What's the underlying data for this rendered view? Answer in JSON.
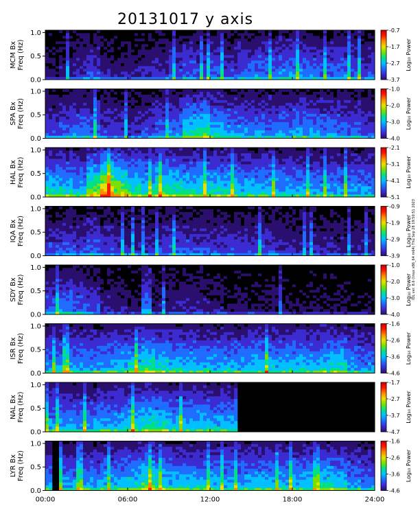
{
  "title": "20131017 y axis",
  "side_note": "IDL ver. 8.6 (linux x86_64 m64) Thu Sep 28 19:50:51 2023",
  "colorbar_label": "Log₁₀ Power",
  "colors": {
    "background_plot": "#000000",
    "colormap": [
      "#000000",
      "#2a0f6e",
      "#3b2bd0",
      "#1f6cff",
      "#00c0ff",
      "#00e08a",
      "#7be000",
      "#e8e000",
      "#ff8a00",
      "#ff1800",
      "#d00000"
    ]
  },
  "chart_data": [
    {
      "type": "heatmap",
      "station": "MCM",
      "ylabel_line1": "MCM Bx",
      "ylabel_line2": "Freq (Hz)",
      "x_range_hours": [
        0,
        24
      ],
      "ylim": [
        0,
        1.05
      ],
      "y_ticks": [
        "0.0",
        "0.5",
        "1.0"
      ],
      "cbar_range": [
        -3.7,
        -0.7
      ],
      "cbar_ticks": [
        "-0.7",
        "-1.7",
        "-2.7",
        "-3.7"
      ],
      "intensity_profile": [
        0.15,
        0.18,
        0.25,
        0.3,
        0.2,
        0.18,
        0.2,
        0.22,
        0.25,
        0.3,
        0.35,
        0.3,
        0.35,
        0.3,
        0.35,
        0.4,
        0.38,
        0.42,
        0.4,
        0.38,
        0.35,
        0.38,
        0.36,
        0.3
      ],
      "data_gap_hours": []
    },
    {
      "type": "heatmap",
      "station": "SPA",
      "ylabel_line1": "SPA Bx",
      "ylabel_line2": "Freq (Hz)",
      "x_range_hours": [
        0,
        24
      ],
      "ylim": [
        0,
        1.05
      ],
      "y_ticks": [
        "0.0",
        "0.5",
        "1.0"
      ],
      "cbar_range": [
        -4.0,
        -1.0
      ],
      "cbar_ticks": [
        "-1.0",
        "-2.0",
        "-3.0",
        "-4.0"
      ],
      "intensity_profile": [
        0.3,
        0.35,
        0.4,
        0.38,
        0.3,
        0.28,
        0.25,
        0.3,
        0.35,
        0.4,
        0.55,
        0.6,
        0.5,
        0.45,
        0.42,
        0.4,
        0.4,
        0.42,
        0.45,
        0.42,
        0.4,
        0.38,
        0.35,
        0.3
      ],
      "data_gap_hours": []
    },
    {
      "type": "heatmap",
      "station": "HAL",
      "ylabel_line1": "HAL Bx",
      "ylabel_line2": "Freq (Hz)",
      "x_range_hours": [
        0,
        24
      ],
      "ylim": [
        0,
        1.05
      ],
      "y_ticks": [
        "0.0",
        "0.5",
        "1.0"
      ],
      "cbar_range": [
        -5.1,
        -2.1
      ],
      "cbar_ticks": [
        "-2.1",
        "-3.1",
        "-4.1",
        "-5.1"
      ],
      "intensity_profile": [
        0.55,
        0.55,
        0.5,
        0.7,
        0.85,
        0.72,
        0.6,
        0.55,
        0.65,
        0.6,
        0.55,
        0.55,
        0.55,
        0.55,
        0.5,
        0.5,
        0.48,
        0.48,
        0.46,
        0.45,
        0.45,
        0.44,
        0.44,
        0.43
      ],
      "data_gap_hours": []
    },
    {
      "type": "heatmap",
      "station": "IQA",
      "ylabel_line1": "IQA Bx",
      "ylabel_line2": "Freq (Hz)",
      "x_range_hours": [
        0,
        24
      ],
      "ylim": [
        0,
        1.05
      ],
      "y_ticks": [
        "0.0",
        "0.5",
        "1.0"
      ],
      "cbar_range": [
        -3.9,
        -0.9
      ],
      "cbar_ticks": [
        "-0.9",
        "-1.9",
        "-2.9",
        "-3.9"
      ],
      "intensity_profile": [
        0.3,
        0.32,
        0.3,
        0.35,
        0.28,
        0.25,
        0.25,
        0.25,
        0.28,
        0.3,
        0.32,
        0.3,
        0.28,
        0.28,
        0.3,
        0.3,
        0.28,
        0.25,
        0.22,
        0.22,
        0.22,
        0.2,
        0.2,
        0.2
      ],
      "data_gap_hours": []
    },
    {
      "type": "heatmap",
      "station": "SDY",
      "ylabel_line1": "SDY Bx",
      "ylabel_line2": "Freq (Hz)",
      "x_range_hours": [
        0,
        24
      ],
      "ylim": [
        0,
        1.05
      ],
      "y_ticks": [
        "0.0",
        "0.5",
        "1.0"
      ],
      "cbar_range": [
        -4.0,
        -1.0
      ],
      "cbar_ticks": [
        "-1.0",
        "-2.0",
        "-3.0",
        "-4.0"
      ],
      "intensity_profile": [
        0.35,
        0.4,
        0.35,
        0.3,
        0.2,
        0.18,
        0.15,
        0.15,
        0.18,
        0.2,
        0.22,
        0.2,
        0.18,
        0.15,
        0.15,
        0.15,
        0.15,
        0.12,
        0.12,
        0.12,
        0.12,
        0.12,
        0.1,
        0.1
      ],
      "data_gap_hours": []
    },
    {
      "type": "heatmap",
      "station": "ISR",
      "ylabel_line1": "ISR Bx",
      "ylabel_line2": "Freq (Hz)",
      "x_range_hours": [
        0,
        24
      ],
      "ylim": [
        0,
        1.05
      ],
      "y_ticks": [
        "0.0",
        "0.5",
        "1.0"
      ],
      "cbar_range": [
        -4.6,
        -1.6
      ],
      "cbar_ticks": [
        "-1.6",
        "-2.6",
        "-3.6",
        "-4.6"
      ],
      "intensity_profile": [
        0.45,
        0.45,
        0.45,
        0.45,
        0.48,
        0.5,
        0.55,
        0.6,
        0.55,
        0.5,
        0.5,
        0.5,
        0.48,
        0.48,
        0.48,
        0.5,
        0.5,
        0.5,
        0.5,
        0.5,
        0.55,
        0.55,
        0.45,
        0.4
      ],
      "data_gap_hours": []
    },
    {
      "type": "heatmap",
      "station": "NAL",
      "ylabel_line1": "NAL Bx",
      "ylabel_line2": "Freq (Hz)",
      "x_range_hours": [
        0,
        24
      ],
      "ylim": [
        0,
        1.05
      ],
      "y_ticks": [
        "0.0",
        "0.5",
        "1.0"
      ],
      "cbar_range": [
        -4.7,
        -1.7
      ],
      "cbar_ticks": [
        "-1.7",
        "-2.7",
        "-3.7",
        "-4.7"
      ],
      "intensity_profile": [
        0.45,
        0.45,
        0.45,
        0.45,
        0.48,
        0.5,
        0.55,
        0.6,
        0.55,
        0.5,
        0.5,
        0.5,
        0.48,
        0.48,
        0.0,
        0.0,
        0.0,
        0.0,
        0.0,
        0.0,
        0.0,
        0.0,
        0.0,
        0.0
      ],
      "data_gap_hours": [
        [
          14.0,
          24.0
        ]
      ]
    },
    {
      "type": "heatmap",
      "station": "LYR",
      "ylabel_line1": "LYR Bx",
      "ylabel_line2": "Freq (Hz)",
      "x_range_hours": [
        0,
        24
      ],
      "ylim": [
        0,
        1.05
      ],
      "y_ticks": [
        "0.0",
        "0.5",
        "1.0"
      ],
      "cbar_range": [
        -4.6,
        -1.6
      ],
      "cbar_ticks": [
        "-1.6",
        "-2.6",
        "-3.6",
        "-4.6"
      ],
      "intensity_profile": [
        0.45,
        0.45,
        0.45,
        0.45,
        0.48,
        0.5,
        0.55,
        0.62,
        0.55,
        0.5,
        0.5,
        0.5,
        0.48,
        0.48,
        0.48,
        0.5,
        0.5,
        0.5,
        0.5,
        0.5,
        0.55,
        0.52,
        0.45,
        0.4
      ],
      "data_gap_hours": [
        [
          0.6,
          0.9
        ]
      ]
    }
  ],
  "x_axis": {
    "ticks": [
      "00:00",
      "06:00",
      "12:00",
      "18:00",
      "24:00"
    ],
    "tick_hours": [
      0,
      6,
      12,
      18,
      24
    ]
  }
}
